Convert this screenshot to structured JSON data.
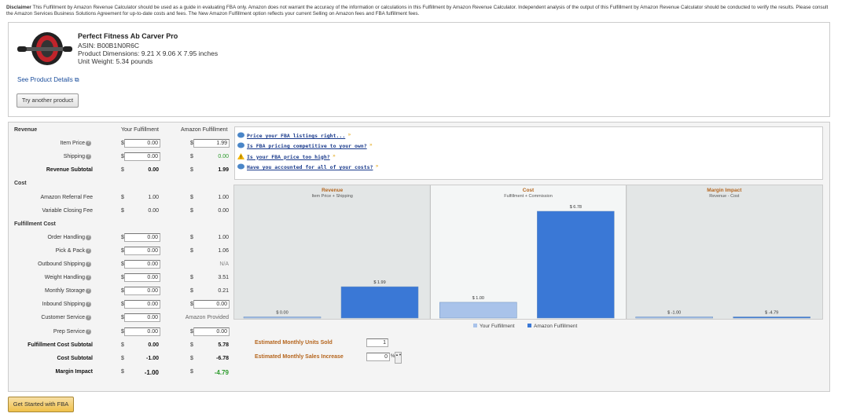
{
  "disclaimer": {
    "label": "Disclaimer",
    "text": "This Fulfillment by Amazon Revenue Calculator should be used as a guide in evaluating FBA only. Amazon does not warrant the accuracy of the information or calculations in this Fulfillment by Amazon Revenue Calculator. Independent analysis of the output of this Fulfillment by Amazon Revenue Calculator should be conducted to verify the results. Please consult the Amazon Services Business Solutions Agreement for up-to-date costs and fees. The New Amazon Fulfillment option reflects your current Selling on Amazon fees and FBA fulfillment fees."
  },
  "product": {
    "title": "Perfect Fitness Ab Carver Pro",
    "asin": "ASIN: B00B1N0R6C",
    "dimensions": "Product Dimensions: 9.21 X 9.06 X 7.95 inches",
    "weight": "Unit Weight: 5.34 pounds",
    "details_link": "See Product Details",
    "button": "Try another product"
  },
  "calculator": {
    "currency": "$",
    "columns": [
      "Your Fulfillment",
      "Amazon Fulfillment"
    ],
    "sections": [
      {
        "title": "Revenue",
        "rows": [
          {
            "label": "Item Price",
            "help": true,
            "your": "0.00",
            "your_input": true,
            "amazon": "1.99",
            "amazon_input": true,
            "amazon_currency": true
          },
          {
            "label": "Shipping",
            "help": true,
            "your": "0.00",
            "your_input": true,
            "amazon": "0.00",
            "amazon_currency": true,
            "amazon_color": "#2a9a2a"
          },
          {
            "label": "Revenue Subtotal",
            "bold": true,
            "your": "0.00",
            "amazon": "1.99",
            "amazon_currency": true
          }
        ]
      },
      {
        "title": "Cost",
        "rows": [
          {
            "label": "Amazon Referral Fee",
            "your": "1.00",
            "amazon": "1.00",
            "amazon_currency": true
          },
          {
            "label": "Variable Closing Fee",
            "your": "0.00",
            "amazon": "0.00",
            "amazon_currency": true
          }
        ]
      },
      {
        "title": "Fulfillment Cost",
        "rows": [
          {
            "label": "Order Handling",
            "help": true,
            "your": "0.00",
            "your_input": true,
            "amazon": "1.00",
            "amazon_currency": true
          },
          {
            "label": "Pick & Pack",
            "help": true,
            "your": "0.00",
            "your_input": true,
            "amazon": "1.06",
            "amazon_currency": true
          },
          {
            "label": "Outbound Shipping",
            "help": true,
            "your": "0.00",
            "your_input": true,
            "amazon": "N/A",
            "amazon_color": "#888"
          },
          {
            "label": "Weight Handling",
            "help": true,
            "your": "0.00",
            "your_input": true,
            "amazon": "3.51",
            "amazon_currency": true
          },
          {
            "label": "Monthly Storage",
            "help": true,
            "your": "0.00",
            "your_input": true,
            "amazon": "0.21",
            "amazon_currency": true
          },
          {
            "label": "Inbound Shipping",
            "help": true,
            "your": "0.00",
            "your_input": true,
            "amazon": "0.00",
            "amazon_input": true,
            "amazon_currency": true
          },
          {
            "label": "Customer Service",
            "help": true,
            "your": "0.00",
            "your_input": true,
            "amazon": "Amazon Provided",
            "amazon_color": "#666"
          },
          {
            "label": "Prep Service",
            "help": true,
            "your": "0.00",
            "your_input": true,
            "amazon": "0.00",
            "amazon_input": true,
            "amazon_currency": true
          },
          {
            "label": "Fulfillment Cost Subtotal",
            "bold": true,
            "your": "0.00",
            "amazon": "5.78",
            "amazon_currency": true
          },
          {
            "label": "Cost Subtotal",
            "bold": true,
            "your": "-1.00",
            "amazon": "-6.78",
            "amazon_currency": true
          },
          {
            "label": "Margin Impact",
            "bold": true,
            "big": true,
            "your": "-1.00",
            "amazon": "-4.79",
            "amazon_currency": true,
            "amazon_color": "#2a9a2a"
          }
        ]
      }
    ]
  },
  "tips": [
    {
      "text": "Price your FBA listings right...",
      "icon": "info"
    },
    {
      "text": "Is FBA pricing competitive to your own?",
      "icon": "info"
    },
    {
      "text": "Is your FBA price too high?",
      "icon": "warning"
    },
    {
      "text": "Have you accounted for all of your costs?",
      "icon": "info"
    }
  ],
  "chart_data": {
    "type": "bar",
    "categories": [
      "Revenue",
      "Cost",
      "Margin Impact"
    ],
    "subtitles": [
      "Item Price + Shipping",
      "Fulfillment + Commission",
      "Revenue - Cost"
    ],
    "series": [
      {
        "name": "Your Fulfillment",
        "color": "#a9c3ea",
        "values": [
          0,
          1.0,
          -1.0
        ],
        "value_labels": [
          "$ 0.00",
          "$ 1.00",
          "$ -1.00"
        ]
      },
      {
        "name": "Amazon Fulfillment",
        "color": "#3a78d6",
        "values": [
          1.99,
          6.78,
          -4.79
        ],
        "value_labels": [
          "$ 1.99",
          "$ 6.78",
          "$ -4.79"
        ]
      }
    ]
  },
  "estimates": [
    {
      "label": "Estimated Monthly Units Sold",
      "value": "1"
    },
    {
      "label": "Estimated Monthly Sales Increase",
      "value": "0",
      "unit": "%"
    }
  ],
  "cta": "Get Started with FBA"
}
